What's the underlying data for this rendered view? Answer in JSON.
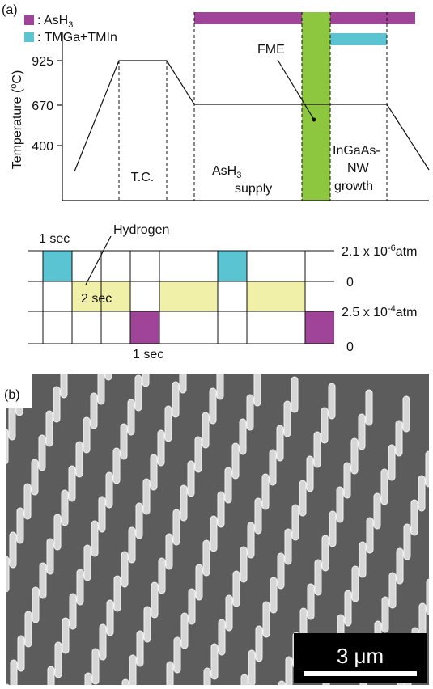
{
  "panel_a": {
    "label": "(a)",
    "legend": [
      {
        "text": ": AsH",
        "sub": "3"
      },
      {
        "text": ": TMGa+TMIn"
      }
    ],
    "y_axis_label": {
      "text": "Temperature (",
      "sup": "o",
      "tail": "C)"
    },
    "temp_ticks": [
      "925",
      "670",
      "400"
    ],
    "fme": "FME",
    "phase_tc": "T.C.",
    "phase_supply": {
      "text": "AsH",
      "sub": "3",
      "line2": "supply"
    },
    "phase_growth": [
      "InGaAs-",
      "NW",
      "growth"
    ],
    "pulse": {
      "one_sec_top": "1 sec",
      "hydrogen": "Hydrogen",
      "two_sec": "2 sec",
      "one_sec_bottom": "1 sec",
      "levels": [
        {
          "text": "2.1 x 10",
          "sup": "-6",
          "tail": "atm"
        },
        {
          "text": "0"
        },
        {
          "text": "2.5 x 10",
          "sup": "-4",
          "tail": "atm"
        },
        {
          "text": "0"
        }
      ]
    }
  },
  "panel_b": {
    "label": "(b)",
    "scale_bar": "3 μm"
  }
}
